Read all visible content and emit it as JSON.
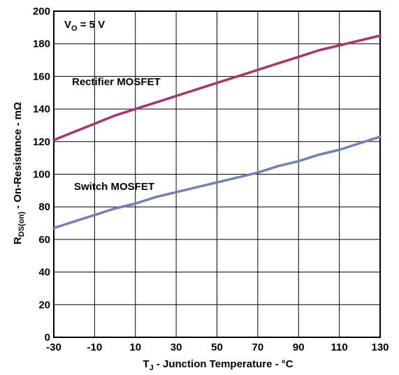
{
  "chart_data": {
    "type": "line",
    "x": [
      -30,
      -20,
      -10,
      0,
      10,
      20,
      30,
      40,
      50,
      60,
      70,
      80,
      90,
      100,
      110,
      120,
      130
    ],
    "series": [
      {
        "name": "Rectifier MOSFET",
        "color": "#a8356b",
        "values": [
          121,
          126,
          131,
          136,
          140,
          144,
          148,
          152,
          156,
          160,
          164,
          168,
          172,
          176,
          179,
          182,
          185
        ]
      },
      {
        "name": "Switch MOSFET",
        "color": "#7180b9",
        "values": [
          67,
          71,
          75,
          79,
          82,
          86,
          89,
          92,
          95,
          98,
          101,
          105,
          108,
          112,
          115,
          119,
          123
        ]
      }
    ],
    "xlim": [
      -30,
      130
    ],
    "ylim": [
      0,
      200
    ],
    "x_ticks": [
      "-30",
      "-10",
      "10",
      "30",
      "50",
      "70",
      "90",
      "110",
      "130"
    ],
    "y_ticks": [
      "0",
      "20",
      "40",
      "60",
      "80",
      "100",
      "120",
      "140",
      "160",
      "180",
      "200"
    ],
    "xlabel": {
      "main": "T",
      "sub": "J",
      "rest": " - Junction Temperature - °C"
    },
    "ylabel": {
      "main": "R",
      "sub": "DS(on)",
      "rest": " - On-Resistance - mΩ"
    },
    "annotation": {
      "main": "V",
      "sub": "O",
      "rest": " = 5 V"
    },
    "grid": true,
    "legend": "inline labels"
  }
}
